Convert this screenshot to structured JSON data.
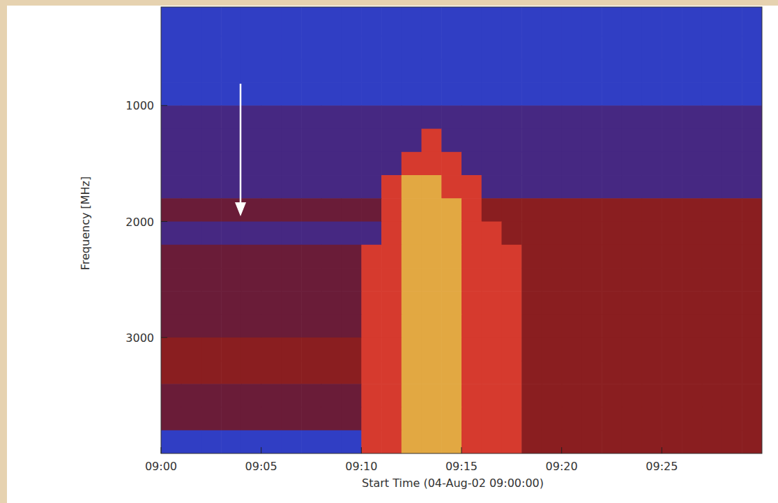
{
  "chart_data": {
    "type": "heatmap",
    "x_label": "Start Time (04-Aug-02 09:00:00)",
    "y_label": "Frequency [MHz]",
    "xlim": [
      0,
      30
    ],
    "ylim": [
      4000,
      150
    ],
    "xticks": [
      {
        "value": 0,
        "label": "09:00"
      },
      {
        "value": 5,
        "label": "09:05"
      },
      {
        "value": 10,
        "label": "09:10"
      },
      {
        "value": 15,
        "label": "09:15"
      },
      {
        "value": 20,
        "label": "09:20"
      },
      {
        "value": 25,
        "label": "09:25"
      }
    ],
    "yticks": [
      1000,
      2000,
      3000
    ],
    "zlim": [
      0,
      8
    ],
    "x_bins": [
      0,
      1,
      2,
      3,
      4,
      5,
      6,
      7,
      8,
      9,
      10,
      11,
      12,
      13,
      14,
      15,
      16,
      17,
      18,
      19,
      20,
      21,
      22,
      23,
      24,
      25,
      26,
      27,
      28,
      29,
      30
    ],
    "y_bins": [
      150,
      400,
      600,
      800,
      1000,
      1200,
      1400,
      1600,
      1800,
      2000,
      2200,
      2400,
      2600,
      2800,
      3000,
      3200,
      3400,
      3600,
      3800,
      4000
    ],
    "z": [
      [
        1,
        1,
        1,
        1,
        1,
        1,
        1,
        1,
        1,
        1,
        1,
        1,
        1,
        1,
        1,
        1,
        1,
        1,
        1,
        1,
        1,
        1,
        1,
        1,
        1,
        1,
        1,
        1,
        1,
        1
      ],
      [
        1,
        1,
        1,
        1,
        1,
        1,
        1,
        1,
        1,
        1,
        1,
        1,
        1,
        1,
        1,
        1,
        1,
        1,
        1,
        1,
        1,
        1,
        1,
        1,
        1,
        1,
        1,
        1,
        1,
        1
      ],
      [
        1,
        1,
        1,
        1,
        1,
        1,
        1,
        1,
        1,
        1,
        1,
        1,
        1,
        1,
        1,
        1,
        1,
        1,
        1,
        1,
        1,
        1,
        1,
        1,
        1,
        1,
        1,
        1,
        1,
        1
      ],
      [
        1,
        1,
        1,
        1,
        1,
        1,
        1,
        1,
        1,
        1,
        1,
        1,
        1,
        1,
        1,
        1,
        1,
        1,
        1,
        1,
        1,
        1,
        1,
        1,
        1,
        1,
        1,
        1,
        1,
        1
      ],
      [
        2,
        2,
        2,
        2,
        2,
        2,
        2,
        2,
        2,
        2,
        2,
        2,
        2,
        2,
        2,
        2,
        2,
        2,
        2,
        2,
        2,
        2,
        2,
        2,
        2,
        2,
        2,
        2,
        2,
        2
      ],
      [
        2,
        2,
        2,
        2,
        2,
        2,
        2,
        2,
        2,
        2,
        2,
        2,
        2,
        5,
        2,
        2,
        2,
        2,
        2,
        2,
        2,
        2,
        2,
        2,
        2,
        2,
        2,
        2,
        2,
        2
      ],
      [
        2,
        2,
        2,
        2,
        2,
        2,
        2,
        2,
        2,
        2,
        2,
        2,
        5,
        5,
        5,
        2,
        2,
        2,
        2,
        2,
        2,
        2,
        2,
        2,
        2,
        2,
        2,
        2,
        2,
        2
      ],
      [
        2,
        2,
        2,
        2,
        2,
        2,
        2,
        2,
        2,
        2,
        2,
        5,
        7,
        7,
        5,
        5,
        2,
        2,
        2,
        2,
        2,
        2,
        2,
        2,
        2,
        2,
        2,
        2,
        2,
        2
      ],
      [
        3,
        3,
        3,
        3,
        3,
        3,
        3,
        3,
        3,
        3,
        3,
        5,
        7,
        7,
        7,
        5,
        4,
        4,
        4,
        4,
        4,
        4,
        4,
        4,
        4,
        4,
        4,
        4,
        4,
        4
      ],
      [
        2,
        2,
        2,
        2,
        2,
        2,
        2,
        2,
        2,
        2,
        2,
        5,
        7,
        7,
        7,
        5,
        5,
        4,
        4,
        4,
        4,
        4,
        4,
        4,
        4,
        4,
        4,
        4,
        4,
        4
      ],
      [
        3,
        3,
        3,
        3,
        3,
        3,
        3,
        3,
        3,
        3,
        5,
        5,
        7,
        7,
        7,
        5,
        5,
        5,
        4,
        4,
        4,
        4,
        4,
        4,
        4,
        4,
        4,
        4,
        4,
        4
      ],
      [
        3,
        3,
        3,
        3,
        3,
        3,
        3,
        3,
        3,
        3,
        5,
        5,
        7,
        7,
        7,
        5,
        5,
        5,
        4,
        4,
        4,
        4,
        4,
        4,
        4,
        4,
        4,
        4,
        4,
        4
      ],
      [
        3,
        3,
        3,
        3,
        3,
        3,
        3,
        3,
        3,
        3,
        5,
        5,
        7,
        7,
        7,
        5,
        5,
        5,
        4,
        4,
        4,
        4,
        4,
        4,
        4,
        4,
        4,
        4,
        4,
        4
      ],
      [
        3,
        3,
        3,
        3,
        3,
        3,
        3,
        3,
        3,
        3,
        5,
        5,
        7,
        7,
        7,
        5,
        5,
        5,
        4,
        4,
        4,
        4,
        4,
        4,
        4,
        4,
        4,
        4,
        4,
        4
      ],
      [
        4,
        4,
        4,
        4,
        4,
        4,
        4,
        4,
        4,
        4,
        5,
        5,
        7,
        7,
        7,
        5,
        5,
        5,
        4,
        4,
        4,
        4,
        4,
        4,
        4,
        4,
        4,
        4,
        4,
        4
      ],
      [
        4,
        4,
        4,
        4,
        4,
        4,
        4,
        4,
        4,
        4,
        5,
        5,
        7,
        7,
        7,
        5,
        5,
        5,
        4,
        4,
        4,
        4,
        4,
        4,
        4,
        4,
        4,
        4,
        4,
        4
      ],
      [
        3,
        3,
        3,
        3,
        3,
        3,
        3,
        3,
        3,
        3,
        5,
        5,
        7,
        7,
        7,
        5,
        5,
        5,
        4,
        4,
        4,
        4,
        4,
        4,
        4,
        4,
        4,
        4,
        4,
        4
      ],
      [
        3,
        3,
        3,
        3,
        3,
        3,
        3,
        3,
        3,
        3,
        5,
        5,
        7,
        7,
        7,
        5,
        5,
        5,
        4,
        4,
        4,
        4,
        4,
        4,
        4,
        4,
        4,
        4,
        4,
        4
      ],
      [
        1,
        1,
        1,
        1,
        1,
        1,
        1,
        1,
        1,
        1,
        5,
        5,
        7,
        7,
        7,
        5,
        5,
        5,
        4,
        4,
        4,
        4,
        4,
        4,
        4,
        4,
        4,
        4,
        4,
        4
      ]
    ]
  }
}
